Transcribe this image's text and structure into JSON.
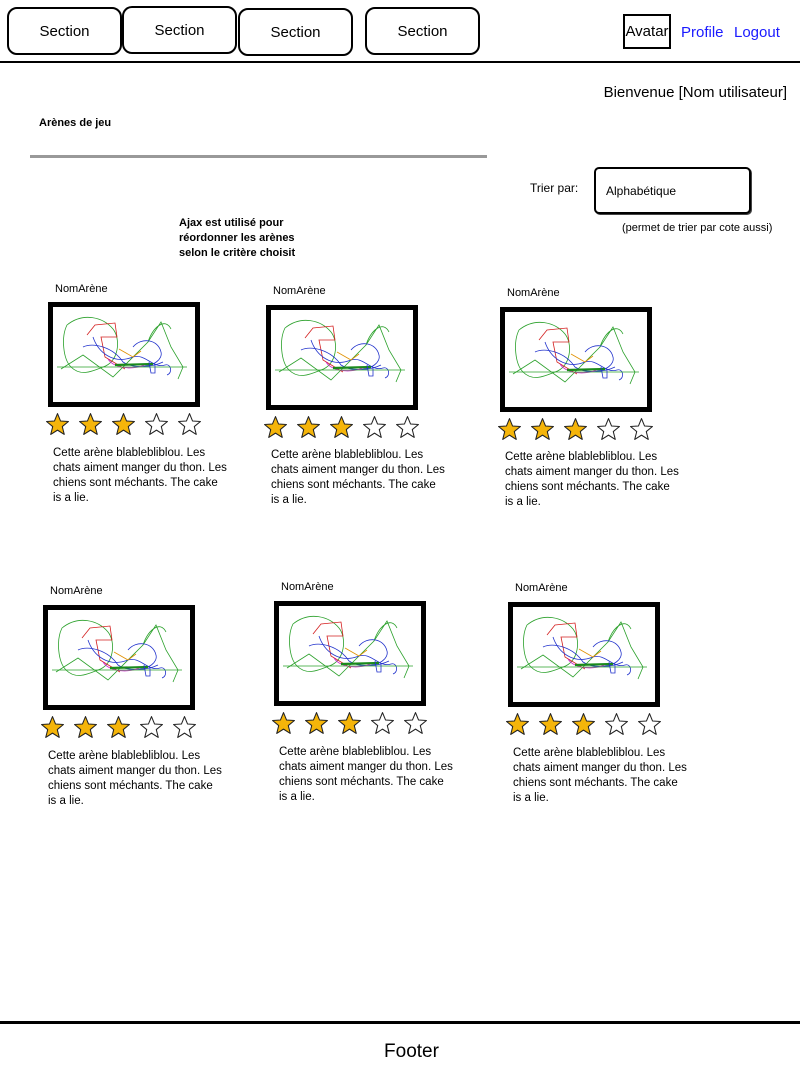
{
  "nav": {
    "tabs": [
      {
        "label": "Section"
      },
      {
        "label": "Section"
      },
      {
        "label": "Section"
      },
      {
        "label": "Section"
      }
    ],
    "avatar": "Avatar",
    "profile": "Profile",
    "logout": "Logout",
    "link_color": "#1a1aff"
  },
  "welcome": "Bienvenue [Nom utilisateur]",
  "page_title": "Arènes de jeu",
  "sort": {
    "label": "Trier par:",
    "value": "Alphabétique",
    "note": "(permet de trier par cote aussi)"
  },
  "ajax_note": "Ajax est utilisé pour réordonner les arènes selon le critère choisit",
  "arenas": [
    {
      "name": "NomArène",
      "rating": 3,
      "max": 5,
      "description": "Cette arène blablebliblou. Les chats aiment manger du thon. Les chiens sont méchants. The cake is a lie."
    },
    {
      "name": "NomArène",
      "rating": 3,
      "max": 5,
      "description": "Cette arène blablebliblou. Les chats aiment manger du thon. Les chiens sont méchants. The cake is a lie."
    },
    {
      "name": "NomArène",
      "rating": 3,
      "max": 5,
      "description": "Cette arène blablebliblou. Les chats aiment manger du thon. Les chiens sont méchants. The cake is a lie."
    },
    {
      "name": "NomArène",
      "rating": 3,
      "max": 5,
      "description": "Cette arène blablebliblou. Les chats aiment manger du thon. Les chiens sont méchants. The cake is a lie."
    },
    {
      "name": "NomArène",
      "rating": 3,
      "max": 5,
      "description": "Cette arène blablebliblou. Les chats aiment manger du thon. Les chiens sont méchants. The cake is a lie."
    },
    {
      "name": "NomArène",
      "rating": 3,
      "max": 5,
      "description": "Cette arène blablebliblou. Les chats aiment manger du thon. Les chiens sont méchants. The cake is a lie."
    }
  ],
  "star_colors": {
    "filled": "#f5b50a",
    "empty": "#ffffff"
  },
  "footer": "Footer"
}
